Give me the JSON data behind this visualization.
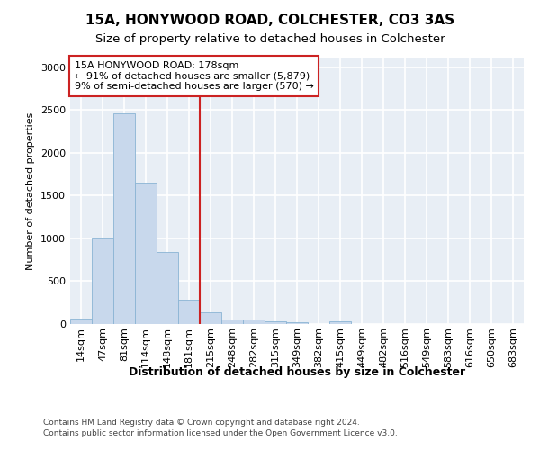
{
  "title1": "15A, HONYWOOD ROAD, COLCHESTER, CO3 3AS",
  "title2": "Size of property relative to detached houses in Colchester",
  "xlabel": "Distribution of detached houses by size in Colchester",
  "ylabel": "Number of detached properties",
  "bar_color": "#c8d8ec",
  "bar_edge_color": "#8ab4d4",
  "annotation_box_text_line1": "15A HONYWOOD ROAD: 178sqm",
  "annotation_box_text_line2": "← 91% of detached houses are smaller (5,879)",
  "annotation_box_text_line3": "9% of semi-detached houses are larger (570) →",
  "vline_x_index": 5,
  "vline_color": "#cc2222",
  "categories": [
    "14sqm",
    "47sqm",
    "81sqm",
    "114sqm",
    "148sqm",
    "181sqm",
    "215sqm",
    "248sqm",
    "282sqm",
    "315sqm",
    "349sqm",
    "382sqm",
    "415sqm",
    "449sqm",
    "482sqm",
    "516sqm",
    "549sqm",
    "583sqm",
    "616sqm",
    "650sqm",
    "683sqm"
  ],
  "values": [
    65,
    1000,
    2460,
    1650,
    840,
    280,
    135,
    55,
    55,
    30,
    20,
    0,
    35,
    0,
    0,
    0,
    0,
    0,
    0,
    0,
    0
  ],
  "ylim": [
    0,
    3100
  ],
  "yticks": [
    0,
    500,
    1000,
    1500,
    2000,
    2500,
    3000
  ],
  "fig_bg_color": "#ffffff",
  "plot_bg_color": "#e8eef5",
  "grid_color": "#ffffff",
  "footer1": "Contains HM Land Registry data © Crown copyright and database right 2024.",
  "footer2": "Contains public sector information licensed under the Open Government Licence v3.0.",
  "title_fontsize": 11,
  "subtitle_fontsize": 9.5,
  "xlabel_fontsize": 9,
  "ylabel_fontsize": 8,
  "annot_fontsize": 8,
  "tick_fontsize": 8,
  "footer_fontsize": 6.5
}
